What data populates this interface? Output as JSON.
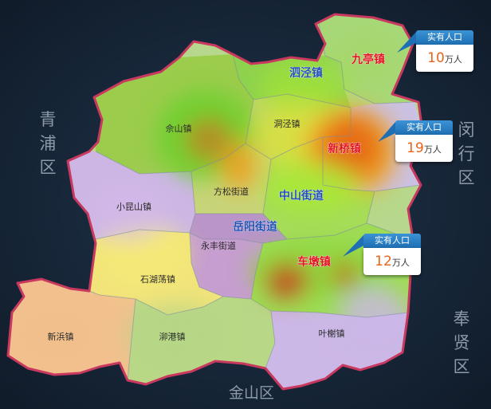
{
  "adjacent_areas": {
    "qingpu": "青浦区",
    "minhang": "闵行区",
    "fengxian": "奉贤区",
    "jinshan": "金山区"
  },
  "regions": [
    {
      "name": "九亭镇",
      "highlight": true
    },
    {
      "name": "泗泾镇",
      "highlight": false,
      "street": true
    },
    {
      "name": "佘山镇"
    },
    {
      "name": "洞泾镇"
    },
    {
      "name": "新桥镇",
      "highlight": true
    },
    {
      "name": "方松街道"
    },
    {
      "name": "中山街道",
      "street": true
    },
    {
      "name": "小昆山镇"
    },
    {
      "name": "岳阳街道",
      "street": true
    },
    {
      "name": "永丰街道"
    },
    {
      "name": "车墩镇",
      "highlight": true
    },
    {
      "name": "石湖荡镇"
    },
    {
      "name": "新浜镇"
    },
    {
      "name": "泖港镇"
    },
    {
      "name": "叶榭镇"
    }
  ],
  "callouts": [
    {
      "title": "实有人口",
      "value": "10",
      "unit": "万人",
      "town": "九亭镇"
    },
    {
      "title": "实有人口",
      "value": "19",
      "unit": "万人",
      "town": "新桥镇"
    },
    {
      "title": "实有人口",
      "value": "12",
      "unit": "万人",
      "town": "车墩镇"
    }
  ],
  "colors": {
    "background": "#172739",
    "border": "#c23a5e",
    "highlight_text": "#e0141e",
    "street_text": "#1f4fb0",
    "callout_header": "#2a82c8",
    "callout_value": "#e8641a"
  }
}
